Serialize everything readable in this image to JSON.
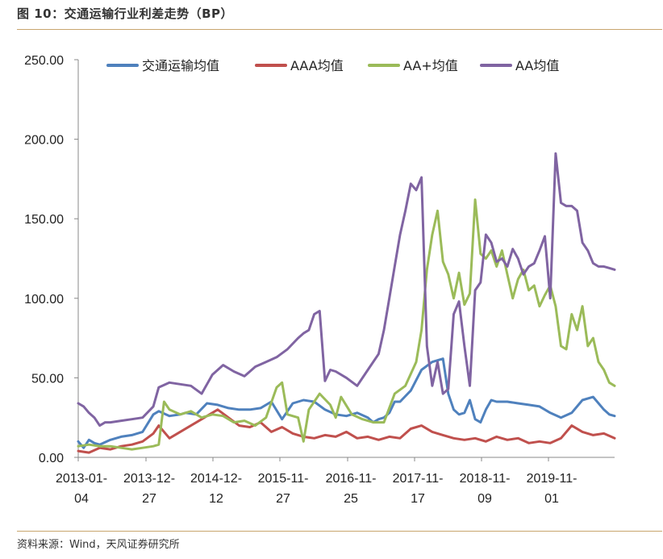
{
  "figure": {
    "title": "图 10：交通运输行业利差走势（BP）",
    "source": "资料来源：Wind，天风证券研究所"
  },
  "chart_data": {
    "type": "line",
    "title": "交通运输行业利差走势（BP）",
    "xlabel": "",
    "ylabel": "",
    "ylim": [
      0,
      250
    ],
    "y_ticks": [
      "0.00",
      "50.00",
      "100.00",
      "150.00",
      "200.00",
      "250.00"
    ],
    "x_range": [
      0,
      100
    ],
    "x_ticks": [
      {
        "line1": "2013-01-",
        "line2": "04"
      },
      {
        "line1": "2013-12-",
        "line2": "27"
      },
      {
        "line1": "2014-12-",
        "line2": "12"
      },
      {
        "line1": "2015-11-",
        "line2": "27"
      },
      {
        "line1": "2016-11-",
        "line2": "25"
      },
      {
        "line1": "2017-11-",
        "line2": "17"
      },
      {
        "line1": "2018-11-",
        "line2": "09"
      },
      {
        "line1": "2019-11-",
        "line2": "01"
      }
    ],
    "grid": false,
    "legend_position": "top",
    "series": [
      {
        "name": "交通运输均值",
        "color": "#4f81bd",
        "x": [
          0,
          1,
          2,
          3,
          4,
          6,
          8,
          10,
          12,
          14,
          15,
          17,
          19,
          20,
          22,
          24,
          26,
          28,
          30,
          32,
          34,
          36,
          38,
          40,
          42,
          44,
          46,
          48,
          50,
          52,
          54,
          55,
          56,
          57,
          58,
          59,
          60,
          62,
          64,
          66,
          68,
          69,
          70,
          71,
          72,
          73,
          74,
          75,
          76,
          77,
          78,
          80,
          82,
          84,
          86,
          88,
          90,
          92,
          94,
          96,
          98,
          99,
          100
        ],
        "values": [
          10,
          6,
          11,
          9,
          8,
          11,
          13,
          14,
          16,
          27,
          29,
          26,
          27,
          28,
          27,
          34,
          33,
          31,
          30,
          30,
          31,
          35,
          24,
          34,
          36,
          35,
          30,
          27,
          26,
          28,
          25,
          22,
          24,
          25,
          28,
          35,
          35,
          42,
          55,
          60,
          62,
          40,
          30,
          27,
          28,
          36,
          24,
          22,
          30,
          36,
          35,
          35,
          34,
          33,
          32,
          28,
          25,
          28,
          36,
          38,
          30,
          27,
          26
        ]
      },
      {
        "name": "AAA均值",
        "color": "#c0504d",
        "x": [
          0,
          2,
          4,
          6,
          8,
          10,
          12,
          14,
          15,
          17,
          19,
          21,
          23,
          26,
          28,
          30,
          32,
          34,
          36,
          38,
          40,
          42,
          44,
          46,
          48,
          50,
          52,
          54,
          56,
          58,
          60,
          62,
          64,
          66,
          68,
          70,
          72,
          74,
          76,
          78,
          80,
          82,
          84,
          86,
          88,
          90,
          92,
          94,
          96,
          98,
          100
        ],
        "values": [
          4,
          3,
          6,
          5,
          7,
          8,
          10,
          15,
          20,
          12,
          16,
          20,
          24,
          30,
          25,
          20,
          19,
          22,
          16,
          19,
          15,
          13,
          12,
          14,
          13,
          16,
          12,
          13,
          11,
          13,
          12,
          18,
          20,
          16,
          14,
          12,
          11,
          12,
          10,
          13,
          11,
          12,
          9,
          10,
          9,
          12,
          20,
          16,
          14,
          15,
          12
        ]
      },
      {
        "name": "AA+均值",
        "color": "#9bbb59",
        "x": [
          0,
          2,
          4,
          6,
          8,
          10,
          12,
          14,
          15,
          16,
          17,
          19,
          21,
          23,
          25,
          27,
          29,
          31,
          33,
          35,
          37,
          38,
          39,
          41,
          42,
          43,
          45,
          47,
          48,
          49,
          51,
          53,
          55,
          57,
          59,
          61,
          63,
          64,
          65,
          66,
          67,
          68,
          69,
          70,
          71,
          72,
          73,
          74,
          75,
          76,
          77,
          78,
          79,
          80,
          81,
          82,
          83,
          84,
          85,
          86,
          87,
          88,
          89,
          90,
          91,
          92,
          93,
          94,
          95,
          96,
          97,
          98,
          99,
          100
        ],
        "values": [
          7,
          8,
          7,
          7,
          6,
          5,
          6,
          7,
          8,
          35,
          30,
          27,
          29,
          25,
          27,
          26,
          22,
          23,
          20,
          25,
          44,
          47,
          27,
          25,
          10,
          30,
          40,
          33,
          25,
          38,
          27,
          24,
          22,
          22,
          40,
          45,
          60,
          80,
          118,
          140,
          155,
          123,
          115,
          100,
          116,
          96,
          103,
          162,
          128,
          125,
          130,
          120,
          130,
          115,
          100,
          112,
          118,
          105,
          108,
          95,
          102,
          108,
          95,
          70,
          68,
          90,
          80,
          95,
          70,
          75,
          60,
          55,
          47,
          45
        ]
      },
      {
        "name": "AA均值",
        "color": "#8064a2",
        "x": [
          0,
          1,
          2,
          3,
          4,
          5,
          6,
          8,
          10,
          12,
          14,
          15,
          17,
          19,
          21,
          23,
          25,
          27,
          29,
          31,
          33,
          35,
          37,
          39,
          41,
          42,
          43,
          44,
          45,
          46,
          47,
          48,
          50,
          52,
          54,
          56,
          57,
          58,
          59,
          60,
          61,
          62,
          63,
          64,
          65,
          66,
          67,
          68,
          69,
          70,
          71,
          72,
          73,
          74,
          75,
          76,
          77,
          78,
          79,
          80,
          81,
          82,
          83,
          84,
          85,
          86,
          87,
          88,
          89,
          90,
          91,
          92,
          93,
          94,
          95,
          96,
          97,
          98,
          99,
          100
        ],
        "values": [
          34,
          32,
          28,
          25,
          20,
          22,
          22,
          23,
          24,
          25,
          32,
          44,
          47,
          46,
          45,
          40,
          52,
          58,
          54,
          51,
          57,
          60,
          63,
          68,
          75,
          78,
          80,
          90,
          92,
          48,
          55,
          54,
          50,
          45,
          55,
          65,
          80,
          100,
          120,
          140,
          155,
          172,
          168,
          176,
          70,
          45,
          60,
          40,
          43,
          90,
          98,
          70,
          45,
          105,
          110,
          140,
          135,
          123,
          125,
          120,
          131,
          125,
          115,
          120,
          122,
          130,
          139,
          100,
          191,
          160,
          158,
          158,
          155,
          135,
          130,
          122,
          120,
          120,
          119,
          118
        ]
      }
    ]
  }
}
